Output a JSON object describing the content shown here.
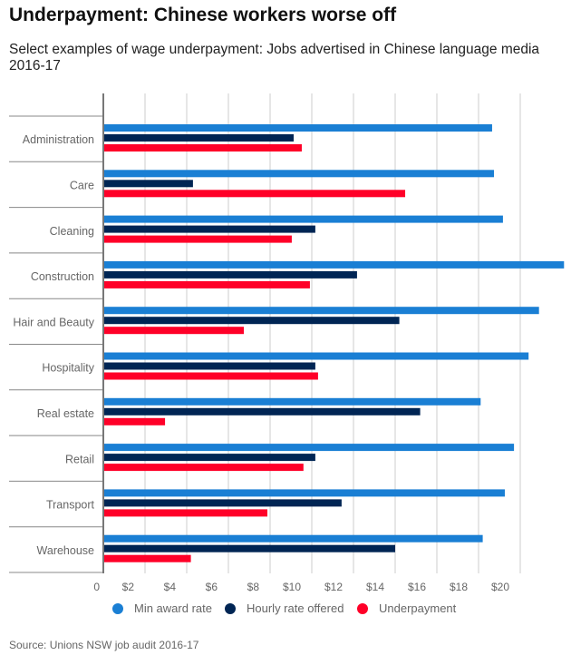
{
  "title": "Underpayment: Chinese workers worse off",
  "subtitle": "Select examples of wage underpayment: Jobs advertised in Chinese language media 2016-17",
  "source": "Source: Unions NSW job audit 2016-17",
  "chart_data": {
    "type": "bar",
    "orientation": "horizontal",
    "categories": [
      "Administration",
      "Care",
      "Cleaning",
      "Construction",
      "Hair and Beauty",
      "Hospitality",
      "Real estate",
      "Retail",
      "Transport",
      "Warehouse"
    ],
    "series": [
      {
        "name": "Min award rate",
        "color": "#1a7fd4",
        "values": [
          18.65,
          18.74,
          19.17,
          22.1,
          20.9,
          20.4,
          18.1,
          19.7,
          19.26,
          18.2
        ]
      },
      {
        "name": "Hourly rate offered",
        "color": "#002554",
        "values": [
          9.13,
          4.3,
          10.17,
          12.17,
          14.2,
          10.17,
          15.2,
          10.17,
          11.43,
          14.0
        ]
      },
      {
        "name": "Underpayment",
        "color": "#ff0028",
        "values": [
          9.52,
          14.48,
          9.04,
          9.91,
          6.74,
          10.3,
          2.96,
          9.6,
          7.87,
          4.2
        ]
      }
    ],
    "xticks": [
      "0",
      "$2",
      "$4",
      "$6",
      "$8",
      "$10",
      "$12",
      "$14",
      "$16",
      "$18",
      "$20"
    ],
    "xlim": [
      0,
      22.1
    ],
    "grid": true,
    "legend": "bottom"
  }
}
